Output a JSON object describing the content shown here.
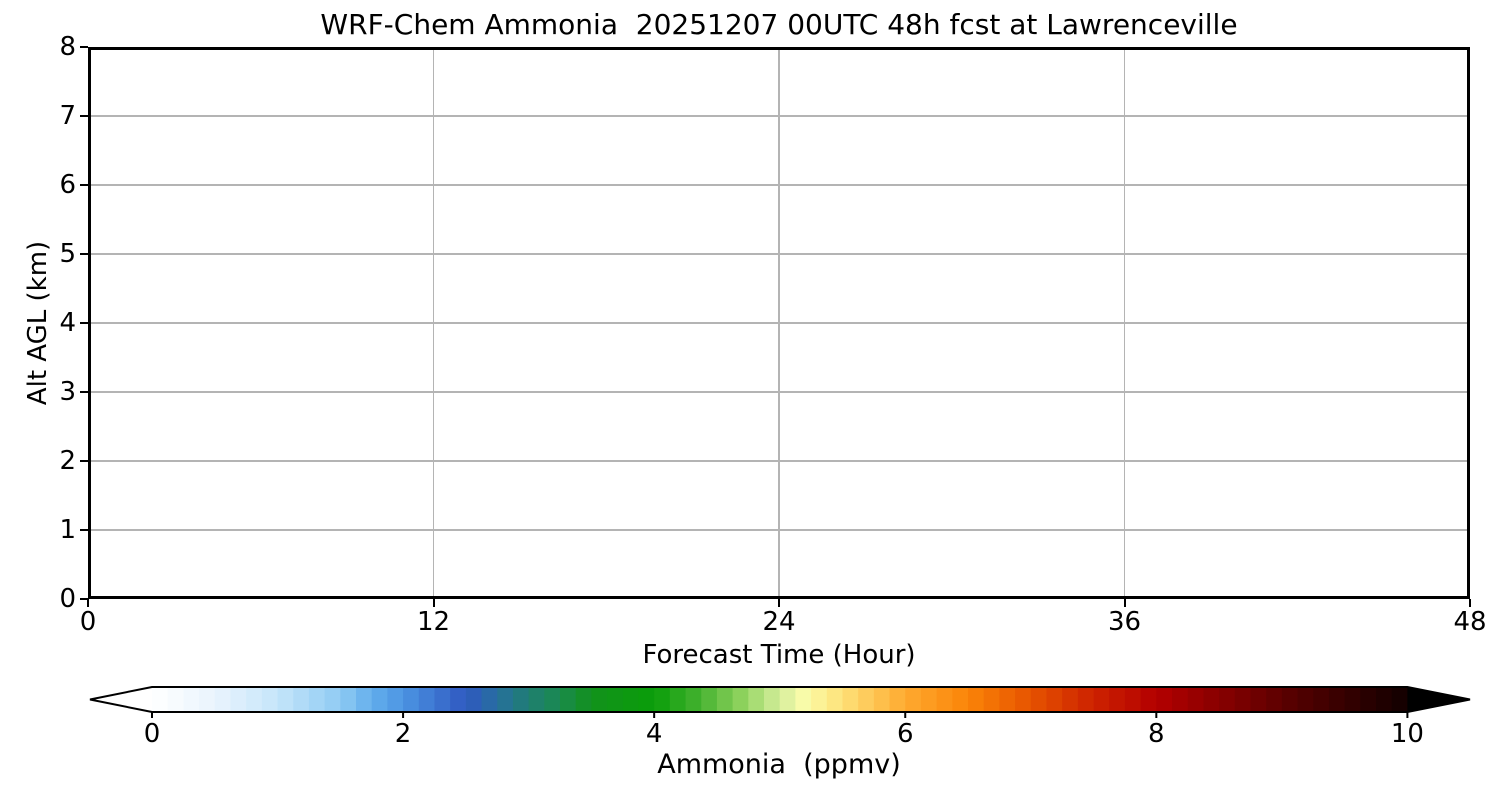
{
  "chart_data": {
    "type": "heatmap",
    "title": "WRF-Chem Ammonia  20251207 00UTC 48h fcst at Lawrenceville",
    "xlabel": "Forecast Time (Hour)",
    "ylabel": "Alt AGL (km)",
    "xlim": [
      0,
      48
    ],
    "ylim": [
      0,
      8
    ],
    "xticks": [
      0,
      12,
      24,
      36,
      48
    ],
    "yticks": [
      0,
      1,
      2,
      3,
      4,
      5,
      6,
      7,
      8
    ],
    "grid": true,
    "grid_color": "#b4b4b4",
    "spine_color": "#000000",
    "field_values_visible": "none — plot area is blank/white (no ammonia signal above colormap minimum)",
    "colorbar": {
      "label": "Ammonia  (ppmv)",
      "range": [
        0,
        10
      ],
      "ticks": [
        0,
        2,
        4,
        6,
        8,
        10
      ],
      "extend": "both",
      "n_bands": 80,
      "under_color": "#ffffff",
      "over_color": "#000000",
      "colormap_stops": [
        {
          "v": 0.0,
          "color": "#ffffff"
        },
        {
          "v": 0.5,
          "color": "#e9f4fd"
        },
        {
          "v": 1.0,
          "color": "#c5e5fa"
        },
        {
          "v": 1.5,
          "color": "#8fcbf3"
        },
        {
          "v": 1.75,
          "color": "#63aeec"
        },
        {
          "v": 2.0,
          "color": "#4c94e2"
        },
        {
          "v": 2.5,
          "color": "#2f58c1"
        },
        {
          "v": 2.75,
          "color": "#276f9e"
        },
        {
          "v": 3.0,
          "color": "#1f7e72"
        },
        {
          "v": 3.25,
          "color": "#1a8a4e"
        },
        {
          "v": 3.5,
          "color": "#12911b"
        },
        {
          "v": 4.0,
          "color": "#0a9e0a"
        },
        {
          "v": 4.35,
          "color": "#42b12e"
        },
        {
          "v": 4.7,
          "color": "#8fd25e"
        },
        {
          "v": 5.0,
          "color": "#d4ee9b"
        },
        {
          "v": 5.2,
          "color": "#fafcaa"
        },
        {
          "v": 5.5,
          "color": "#fee178"
        },
        {
          "v": 6.0,
          "color": "#feaa30"
        },
        {
          "v": 6.5,
          "color": "#fa8408"
        },
        {
          "v": 7.0,
          "color": "#e65300"
        },
        {
          "v": 7.5,
          "color": "#cd2200"
        },
        {
          "v": 8.0,
          "color": "#b30000"
        },
        {
          "v": 8.5,
          "color": "#880000"
        },
        {
          "v": 9.0,
          "color": "#5c0000"
        },
        {
          "v": 9.5,
          "color": "#350000"
        },
        {
          "v": 10.0,
          "color": "#120000"
        }
      ]
    }
  }
}
